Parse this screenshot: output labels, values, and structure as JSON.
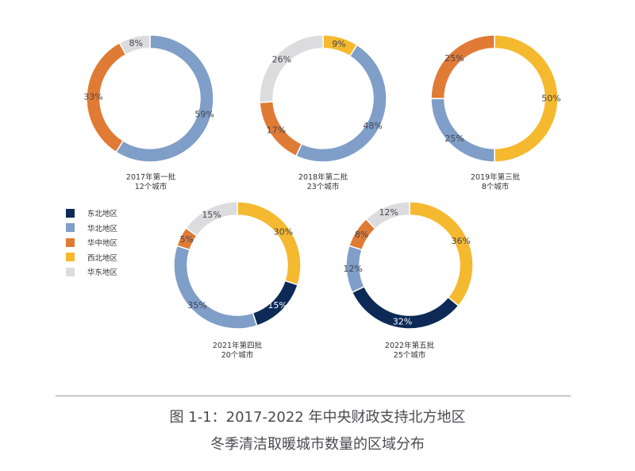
{
  "region_colors": {
    "东北地区": "#0d2a57",
    "华北地区": "#7f9ec8",
    "华中地区": "#e07b35",
    "西北地区": "#f5b92f",
    "华东地区": "#dcdcde"
  },
  "legend": {
    "items": [
      {
        "label": "东北地区",
        "color": "#0d2a57"
      },
      {
        "label": "华北地区",
        "color": "#7f9ec8"
      },
      {
        "label": "华中地区",
        "color": "#e07b35"
      },
      {
        "label": "西北地区",
        "color": "#f5b92f"
      },
      {
        "label": "华东地区",
        "color": "#dcdcde"
      }
    ]
  },
  "chart_data": [
    {
      "type": "pie",
      "title": "2017年第一批",
      "subtitle": "12个城市",
      "categories": [
        "华北地区",
        "华中地区",
        "华东地区"
      ],
      "values": [
        59,
        33,
        8
      ]
    },
    {
      "type": "pie",
      "title": "2018年第二批",
      "subtitle": "23个城市",
      "categories": [
        "西北地区",
        "华北地区",
        "华中地区",
        "华东地区"
      ],
      "values": [
        9,
        48,
        17,
        26
      ]
    },
    {
      "type": "pie",
      "title": "2019年第三批",
      "subtitle": "8个城市",
      "categories": [
        "西北地区",
        "华北地区",
        "华中地区"
      ],
      "values": [
        50,
        25,
        25
      ]
    },
    {
      "type": "pie",
      "title": "2021年第四批",
      "subtitle": "20个城市",
      "categories": [
        "西北地区",
        "东北地区",
        "华北地区",
        "华中地区",
        "华东地区"
      ],
      "values": [
        30,
        15,
        35,
        5,
        15
      ]
    },
    {
      "type": "pie",
      "title": "2022年第五批",
      "subtitle": "25个城市",
      "categories": [
        "西北地区",
        "东北地区",
        "华北地区",
        "华中地区",
        "华东地区"
      ],
      "values": [
        36,
        32,
        12,
        8,
        12
      ]
    }
  ],
  "figure_caption": {
    "line1": "图 1-1：2017-2022 年中央财政支持北方地区",
    "line2": "冬季清洁取暖城市数量的区域分布"
  }
}
